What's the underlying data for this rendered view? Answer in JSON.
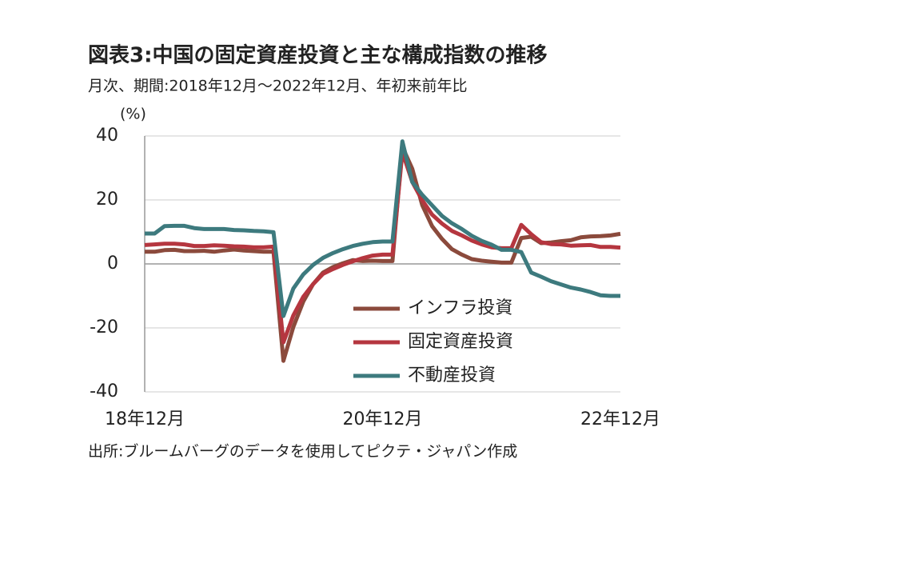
{
  "chart_data": {
    "type": "line",
    "title": "図表3:中国の固定資産投資と主な構成指数の推移",
    "subtitle": "月次、期間:2018年12月～2022年12月、年初来前年比",
    "y_label": "(%)",
    "source": "出所:ブルームバーグのデータを使用してピクテ・ジャパン作成",
    "categories": [
      "18年12月",
      null,
      null,
      null,
      null,
      null,
      null,
      null,
      null,
      null,
      null,
      null,
      null,
      null,
      null,
      null,
      null,
      null,
      null,
      null,
      null,
      null,
      null,
      null,
      "20年12月",
      null,
      null,
      null,
      null,
      null,
      null,
      null,
      null,
      null,
      null,
      null,
      null,
      null,
      null,
      null,
      null,
      null,
      null,
      null,
      null,
      null,
      null,
      null,
      "22年12月"
    ],
    "series": [
      {
        "name": "インフラ投資",
        "color": "#8b4a3c",
        "values": [
          3.8,
          3.8,
          4.3,
          4.4,
          4.0,
          4.0,
          4.1,
          3.8,
          4.2,
          4.5,
          4.2,
          4.0,
          3.8,
          3.8,
          -30.3,
          -19.7,
          -11.8,
          -6.3,
          -2.7,
          -1.0,
          0.2,
          1.2,
          0.9,
          1.0,
          0.9,
          0.9,
          36.6,
          29.7,
          18.4,
          11.8,
          7.8,
          4.6,
          2.9,
          1.5,
          1.0,
          0.7,
          0.4,
          0.4,
          8.1,
          8.5,
          6.5,
          6.7,
          7.1,
          7.4,
          8.3,
          8.6,
          8.7,
          8.9,
          9.4
        ]
      },
      {
        "name": "固定資産投資",
        "color": "#b5363f",
        "values": [
          5.9,
          6.1,
          6.3,
          6.3,
          6.1,
          5.6,
          5.6,
          5.8,
          5.7,
          5.5,
          5.4,
          5.2,
          5.2,
          5.4,
          -24.5,
          -16.1,
          -10.3,
          -6.3,
          -3.1,
          -1.6,
          -0.3,
          0.8,
          1.8,
          2.6,
          2.9,
          2.9,
          35.0,
          25.6,
          19.9,
          15.4,
          12.6,
          10.3,
          8.9,
          7.3,
          6.1,
          5.2,
          4.9,
          4.9,
          12.2,
          9.3,
          6.8,
          6.2,
          6.1,
          5.7,
          5.8,
          5.9,
          5.3,
          5.3,
          5.1
        ]
      },
      {
        "name": "不動産投資",
        "color": "#3d7a7e",
        "values": [
          9.5,
          9.5,
          11.8,
          11.9,
          11.9,
          11.2,
          10.9,
          10.9,
          10.9,
          10.6,
          10.5,
          10.3,
          10.2,
          9.9,
          -16.3,
          -7.7,
          -3.3,
          -0.3,
          1.9,
          3.4,
          4.6,
          5.6,
          6.3,
          6.8,
          7.0,
          7.0,
          38.3,
          25.6,
          21.6,
          18.3,
          15.0,
          12.7,
          10.9,
          8.8,
          7.2,
          6.0,
          4.4,
          4.4,
          3.7,
          -2.7,
          -4.0,
          -5.4,
          -6.4,
          -7.4,
          -8.0,
          -8.8,
          -9.8,
          -10.0,
          -10.0
        ]
      }
    ],
    "ylim": [
      -40,
      40
    ],
    "yticks": [
      40,
      20,
      0,
      -20,
      -40
    ],
    "grid": true
  }
}
